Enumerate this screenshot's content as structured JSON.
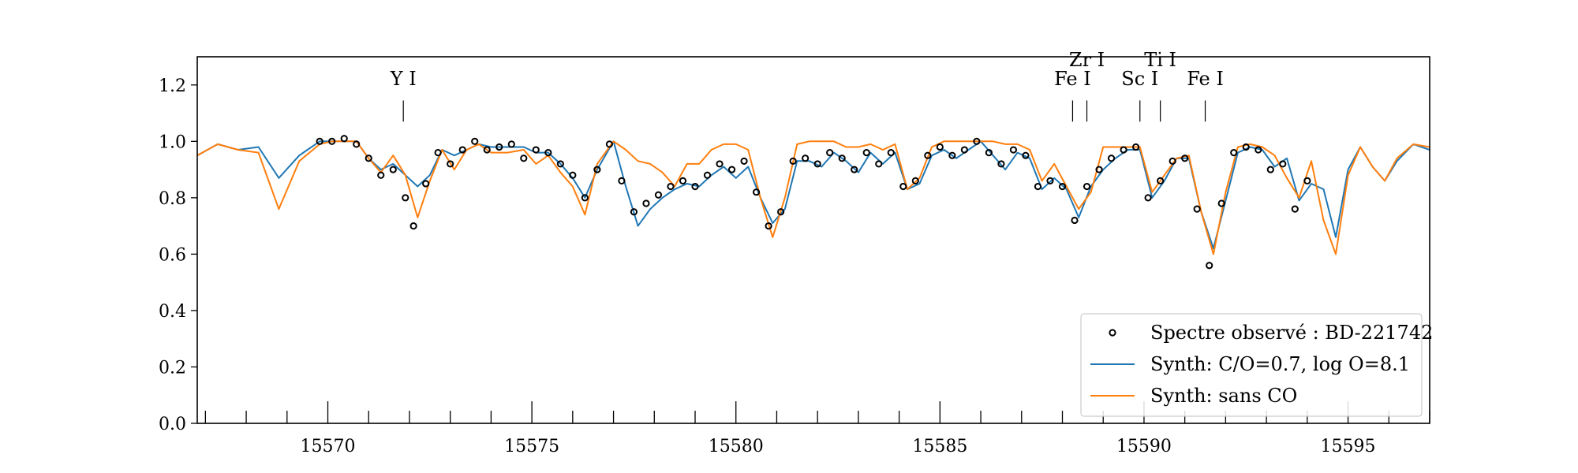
{
  "chart_data": {
    "type": "line",
    "title": "",
    "xlabel": "",
    "ylabel": "",
    "xlim": [
      15566.8,
      15597.0
    ],
    "ylim": [
      0.0,
      1.3
    ],
    "x_ticks": [
      "15570",
      "15575",
      "15580",
      "15585",
      "15590",
      "15595"
    ],
    "y_ticks": [
      "0.0",
      "0.2",
      "0.4",
      "0.6",
      "0.8",
      "1.0",
      "1.2"
    ],
    "grid": false,
    "legend_placement": "lower-right",
    "line_ids": [
      {
        "label": "Y I",
        "x": 15571.85
      },
      {
        "label": "Fe I",
        "x": 15588.25
      },
      {
        "label": "Zr I",
        "x": 15588.6
      },
      {
        "label": "Sc I",
        "x": 15589.9
      },
      {
        "label": "Ti I",
        "x": 15590.4
      },
      {
        "label": "Fe I",
        "x": 15591.5
      }
    ],
    "series": [
      {
        "name": "Spectre observé : BD-221742",
        "kind": "scatter",
        "color": "#000000",
        "x": [
          15569.8,
          15570.1,
          15570.4,
          15570.7,
          15571.0,
          15571.3,
          15571.6,
          15571.9,
          15572.1,
          15572.4,
          15572.7,
          15573.0,
          15573.3,
          15573.6,
          15573.9,
          15574.2,
          15574.5,
          15574.8,
          15575.1,
          15575.4,
          15575.7,
          15576.0,
          15576.3,
          15576.6,
          15576.9,
          15577.2,
          15577.5,
          15577.8,
          15578.1,
          15578.4,
          15578.7,
          15579.0,
          15579.3,
          15579.6,
          15579.9,
          15580.2,
          15580.5,
          15580.8,
          15581.1,
          15581.4,
          15581.7,
          15582.0,
          15582.3,
          15582.6,
          15582.9,
          15583.2,
          15583.5,
          15583.8,
          15584.1,
          15584.4,
          15584.7,
          15585.0,
          15585.3,
          15585.6,
          15585.9,
          15586.2,
          15586.5,
          15586.8,
          15587.1,
          15587.4,
          15587.7,
          15588.0,
          15588.3,
          15588.6,
          15588.9,
          15589.2,
          15589.5,
          15589.8,
          15590.1,
          15590.4,
          15590.7,
          15591.0,
          15591.3,
          15591.6,
          15591.9,
          15592.2,
          15592.5,
          15592.8,
          15593.1,
          15593.4,
          15593.7,
          15594.0
        ],
        "y": [
          1.0,
          1.0,
          1.01,
          0.99,
          0.94,
          0.88,
          0.9,
          0.8,
          0.7,
          0.85,
          0.96,
          0.92,
          0.97,
          1.0,
          0.97,
          0.98,
          0.99,
          0.94,
          0.97,
          0.96,
          0.92,
          0.88,
          0.8,
          0.9,
          0.99,
          0.86,
          0.75,
          0.78,
          0.81,
          0.84,
          0.86,
          0.84,
          0.88,
          0.92,
          0.9,
          0.93,
          0.82,
          0.7,
          0.75,
          0.93,
          0.94,
          0.92,
          0.96,
          0.94,
          0.9,
          0.96,
          0.92,
          0.96,
          0.84,
          0.86,
          0.95,
          0.98,
          0.95,
          0.97,
          1.0,
          0.96,
          0.92,
          0.97,
          0.95,
          0.84,
          0.86,
          0.84,
          0.72,
          0.84,
          0.9,
          0.94,
          0.97,
          0.98,
          0.8,
          0.86,
          0.93,
          0.94,
          0.76,
          0.56,
          0.78,
          0.96,
          0.98,
          0.97,
          0.9,
          0.92,
          0.76,
          0.86
        ]
      },
      {
        "name": "Synth: C/O=0.7, log O=8.1",
        "kind": "line",
        "color": "#1f77b4",
        "x": [
          15566.8,
          15567.3,
          15567.8,
          15568.3,
          15568.8,
          15569.3,
          15569.8,
          15570.1,
          15570.4,
          15570.7,
          15571.0,
          15571.3,
          15571.6,
          15571.9,
          15572.2,
          15572.5,
          15572.8,
          15573.1,
          15573.4,
          15573.7,
          15574.0,
          15574.4,
          15574.8,
          15575.1,
          15575.4,
          15575.7,
          15576.0,
          15576.3,
          15576.6,
          15577.0,
          15577.3,
          15577.6,
          15577.9,
          15578.2,
          15578.5,
          15578.8,
          15579.1,
          15579.4,
          15579.7,
          15580.0,
          15580.3,
          15580.6,
          15580.9,
          15581.2,
          15581.5,
          15581.8,
          15582.1,
          15582.4,
          15582.7,
          15583.0,
          15583.3,
          15583.6,
          15583.9,
          15584.2,
          15584.5,
          15584.8,
          15585.1,
          15585.4,
          15585.7,
          15586.0,
          15586.3,
          15586.6,
          15586.9,
          15587.2,
          15587.5,
          15587.8,
          15588.1,
          15588.4,
          15588.7,
          15589.0,
          15589.3,
          15589.6,
          15589.9,
          15590.2,
          15590.5,
          15590.8,
          15591.1,
          15591.4,
          15591.7,
          15592.0,
          15592.3,
          15592.6,
          15592.9,
          15593.2,
          15593.5,
          15593.8,
          15594.1,
          15594.4,
          15594.7,
          15595.0,
          15595.3,
          15595.6,
          15595.9,
          15596.2,
          15596.6,
          15597.0
        ],
        "y": [
          0.95,
          0.99,
          0.97,
          0.98,
          0.87,
          0.95,
          1.0,
          1.0,
          1.0,
          1.0,
          0.94,
          0.9,
          0.92,
          0.88,
          0.84,
          0.88,
          0.97,
          0.95,
          0.97,
          0.99,
          0.98,
          0.98,
          0.98,
          0.96,
          0.96,
          0.92,
          0.87,
          0.8,
          0.9,
          1.0,
          0.84,
          0.7,
          0.76,
          0.8,
          0.83,
          0.85,
          0.84,
          0.88,
          0.91,
          0.87,
          0.91,
          0.8,
          0.71,
          0.76,
          0.93,
          0.93,
          0.91,
          0.96,
          0.93,
          0.89,
          0.96,
          0.92,
          0.96,
          0.83,
          0.85,
          0.95,
          0.97,
          0.94,
          0.97,
          1.0,
          0.95,
          0.9,
          0.96,
          0.94,
          0.83,
          0.87,
          0.83,
          0.73,
          0.84,
          0.9,
          0.94,
          0.97,
          0.97,
          0.8,
          0.86,
          0.94,
          0.94,
          0.75,
          0.62,
          0.79,
          0.96,
          0.98,
          0.97,
          0.91,
          0.94,
          0.79,
          0.85,
          0.83,
          0.66,
          0.9,
          0.98,
          0.91,
          0.86,
          0.93,
          0.99,
          0.97
        ]
      },
      {
        "name": "Synth: sans CO",
        "kind": "line",
        "color": "#ff7f0e",
        "x": [
          15566.8,
          15567.3,
          15567.8,
          15568.3,
          15568.8,
          15569.3,
          15569.8,
          15570.1,
          15570.4,
          15570.7,
          15571.0,
          15571.3,
          15571.6,
          15571.9,
          15572.2,
          15572.5,
          15572.8,
          15573.1,
          15573.4,
          15573.7,
          15574.0,
          15574.4,
          15574.8,
          15575.1,
          15575.4,
          15575.7,
          15576.0,
          15576.3,
          15576.6,
          15577.0,
          15577.3,
          15577.6,
          15577.9,
          15578.2,
          15578.5,
          15578.8,
          15579.1,
          15579.4,
          15579.7,
          15580.0,
          15580.3,
          15580.6,
          15580.9,
          15581.2,
          15581.5,
          15581.8,
          15582.1,
          15582.4,
          15582.7,
          15583.0,
          15583.3,
          15583.6,
          15583.9,
          15584.2,
          15584.5,
          15584.8,
          15585.1,
          15585.4,
          15585.7,
          15586.0,
          15586.3,
          15586.6,
          15586.9,
          15587.2,
          15587.5,
          15587.8,
          15588.1,
          15588.4,
          15588.7,
          15589.0,
          15589.3,
          15589.6,
          15589.9,
          15590.2,
          15590.5,
          15590.8,
          15591.1,
          15591.4,
          15591.7,
          15592.0,
          15592.3,
          15592.6,
          15592.9,
          15593.2,
          15593.5,
          15593.8,
          15594.1,
          15594.4,
          15594.7,
          15595.0,
          15595.3,
          15595.6,
          15595.9,
          15596.2,
          15596.6,
          15597.0
        ],
        "y": [
          0.95,
          0.99,
          0.97,
          0.96,
          0.76,
          0.93,
          0.99,
          1.0,
          1.0,
          1.0,
          0.94,
          0.89,
          0.95,
          0.88,
          0.73,
          0.86,
          0.97,
          0.9,
          0.97,
          0.99,
          0.96,
          0.96,
          0.97,
          0.92,
          0.95,
          0.89,
          0.84,
          0.74,
          0.92,
          1.0,
          0.97,
          0.93,
          0.92,
          0.89,
          0.84,
          0.92,
          0.92,
          0.97,
          0.99,
          0.99,
          0.97,
          0.8,
          0.66,
          0.8,
          0.99,
          1.0,
          1.0,
          1.0,
          0.98,
          0.98,
          0.99,
          0.97,
          0.99,
          0.83,
          0.87,
          0.98,
          1.0,
          1.0,
          1.0,
          1.0,
          1.0,
          0.99,
          0.99,
          0.97,
          0.86,
          0.92,
          0.84,
          0.76,
          0.82,
          0.98,
          0.98,
          0.98,
          0.98,
          0.82,
          0.88,
          0.94,
          0.95,
          0.75,
          0.6,
          0.82,
          0.98,
          0.99,
          0.98,
          0.95,
          0.87,
          0.8,
          0.93,
          0.72,
          0.6,
          0.88,
          0.98,
          0.91,
          0.86,
          0.94,
          0.99,
          0.98
        ]
      }
    ]
  }
}
